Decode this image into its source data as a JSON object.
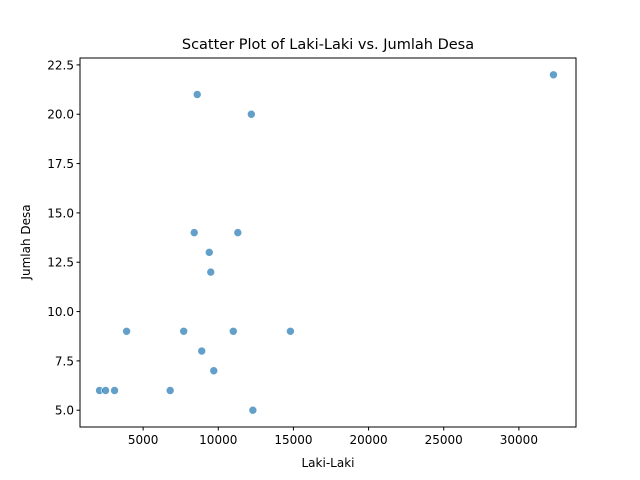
{
  "chart_data": {
    "type": "scatter",
    "title": "Scatter Plot of Laki-Laki vs. Jumlah Desa",
    "xlabel": "Laki-Laki",
    "ylabel": "Jumlah Desa",
    "xlim": [
      800,
      33800
    ],
    "ylim": [
      4.15,
      22.85
    ],
    "xticks": [
      5000,
      10000,
      15000,
      20000,
      25000,
      30000
    ],
    "xtick_labels": [
      "5000",
      "10000",
      "15000",
      "20000",
      "25000",
      "30000"
    ],
    "yticks": [
      5.0,
      7.5,
      10.0,
      12.5,
      15.0,
      17.5,
      20.0,
      22.5
    ],
    "ytick_labels": [
      "5.0",
      "7.5",
      "10.0",
      "12.5",
      "15.0",
      "17.5",
      "20.0",
      "22.5"
    ],
    "grid": false,
    "marker_color": "#1f77b4",
    "marker_alpha": 0.7,
    "points": [
      {
        "x": 32300,
        "y": 22
      },
      {
        "x": 8600,
        "y": 21
      },
      {
        "x": 12200,
        "y": 20
      },
      {
        "x": 8400,
        "y": 14
      },
      {
        "x": 11300,
        "y": 14
      },
      {
        "x": 9400,
        "y": 13
      },
      {
        "x": 9500,
        "y": 12
      },
      {
        "x": 3900,
        "y": 9
      },
      {
        "x": 7700,
        "y": 9
      },
      {
        "x": 11000,
        "y": 9
      },
      {
        "x": 14800,
        "y": 9
      },
      {
        "x": 8900,
        "y": 8
      },
      {
        "x": 9700,
        "y": 7
      },
      {
        "x": 2100,
        "y": 6
      },
      {
        "x": 2500,
        "y": 6
      },
      {
        "x": 3100,
        "y": 6
      },
      {
        "x": 6800,
        "y": 6
      },
      {
        "x": 12300,
        "y": 5
      }
    ]
  }
}
